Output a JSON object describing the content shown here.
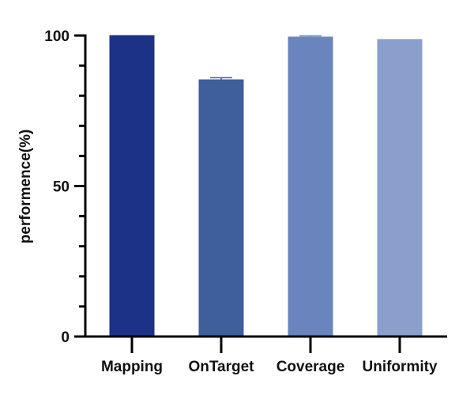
{
  "chart_data": {
    "type": "bar",
    "title": "",
    "xlabel": "",
    "ylabel": "performence(%)",
    "ylim": [
      0,
      100
    ],
    "yticks": [
      0,
      50,
      100
    ],
    "yminor_step": 10,
    "grid": false,
    "categories": [
      "Mapping",
      "OnTarget",
      "Coverage",
      "Uniformity"
    ],
    "values": [
      100,
      85.3,
      99.5,
      98.7
    ],
    "error_upper": [
      null,
      86.0,
      99.9,
      null
    ],
    "colors": [
      "#1b3287",
      "#3e5e9c",
      "#6a84be",
      "#8a9fcb"
    ]
  }
}
